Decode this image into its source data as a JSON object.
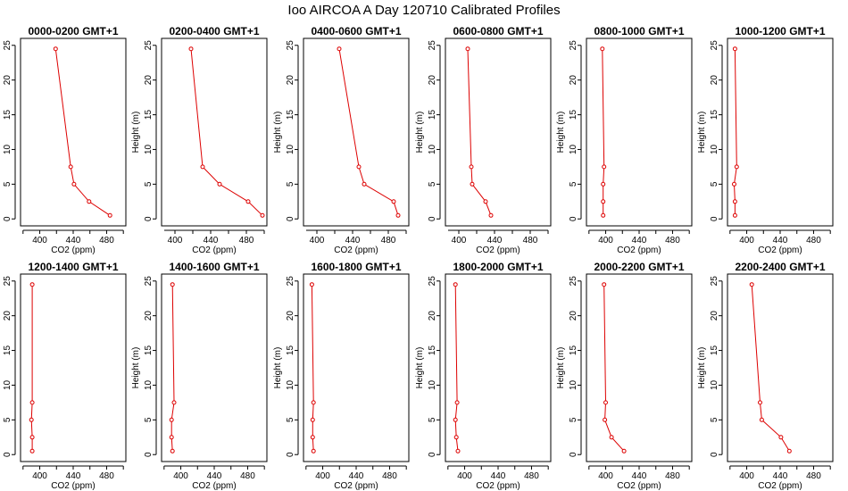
{
  "figure": {
    "title": "Ioo AIRCOA A  Day 120710  Calibrated Profiles"
  },
  "chart_data": [
    {
      "type": "line",
      "title": "0000-0200 GMT+1",
      "xlabel": "CO2 (ppm)",
      "ylabel": "Height (m)",
      "xlim": [
        377,
        503
      ],
      "ylim": [
        -1,
        26
      ],
      "xticks": [
        400,
        440,
        480
      ],
      "yticks": [
        0,
        5,
        10,
        15,
        20,
        25
      ],
      "grid": false,
      "series": [
        {
          "x": [
            484,
            459,
            441,
            437,
            419
          ],
          "y": [
            0.5,
            2.5,
            5,
            7.5,
            24.5
          ]
        }
      ]
    },
    {
      "type": "line",
      "title": "0200-0400 GMT+1",
      "xlabel": "CO2 (ppm)",
      "ylabel": "Height (m)",
      "xlim": [
        385,
        503
      ],
      "ylim": [
        -1,
        26
      ],
      "xticks": [
        400,
        440,
        480
      ],
      "yticks": [
        0,
        5,
        10,
        15,
        20,
        25
      ],
      "grid": false,
      "series": [
        {
          "x": [
            498,
            482,
            450,
            431,
            418
          ],
          "y": [
            0.5,
            2.5,
            5,
            7.5,
            24.5
          ]
        }
      ]
    },
    {
      "type": "line",
      "title": "0400-0600 GMT+1",
      "xlabel": "CO2 (ppm)",
      "ylabel": "Height (m)",
      "xlim": [
        385,
        503
      ],
      "ylim": [
        -1,
        26
      ],
      "xticks": [
        400,
        440,
        480
      ],
      "yticks": [
        0,
        5,
        10,
        15,
        20,
        25
      ],
      "grid": false,
      "series": [
        {
          "x": [
            491,
            486,
            453,
            447,
            425
          ],
          "y": [
            0.5,
            2.5,
            5,
            7.5,
            24.5
          ]
        }
      ]
    },
    {
      "type": "line",
      "title": "0600-0800 GMT+1",
      "xlabel": "CO2 (ppm)",
      "ylabel": "Height (m)",
      "xlim": [
        385,
        503
      ],
      "ylim": [
        -1,
        26
      ],
      "xticks": [
        400,
        440,
        480
      ],
      "yticks": [
        0,
        5,
        10,
        15,
        20,
        25
      ],
      "grid": false,
      "series": [
        {
          "x": [
            436,
            430,
            415,
            414,
            410
          ],
          "y": [
            0.5,
            2.5,
            5,
            7.5,
            24.5
          ]
        }
      ]
    },
    {
      "type": "line",
      "title": "0800-1000 GMT+1",
      "xlabel": "CO2 (ppm)",
      "ylabel": "Height (m)",
      "xlim": [
        377,
        503
      ],
      "ylim": [
        -1,
        26
      ],
      "xticks": [
        400,
        440,
        480
      ],
      "yticks": [
        0,
        5,
        10,
        15,
        20,
        25
      ],
      "grid": false,
      "series": [
        {
          "x": [
            397,
            397,
            397,
            398,
            396
          ],
          "y": [
            0.5,
            2.5,
            5,
            7.5,
            24.5
          ]
        }
      ]
    },
    {
      "type": "line",
      "title": "1000-1200 GMT+1",
      "xlabel": "CO2 (ppm)",
      "ylabel": "Height (m)",
      "xlim": [
        377,
        503
      ],
      "ylim": [
        -1,
        26
      ],
      "xticks": [
        400,
        440,
        480
      ],
      "yticks": [
        0,
        5,
        10,
        15,
        20,
        25
      ],
      "grid": false,
      "series": [
        {
          "x": [
            386,
            386,
            385,
            388,
            386
          ],
          "y": [
            0.5,
            2.5,
            5,
            7.5,
            24.5
          ]
        }
      ]
    },
    {
      "type": "line",
      "title": "1200-1400 GMT+1",
      "xlabel": "CO2 (ppm)",
      "ylabel": "Height (m)",
      "xlim": [
        377,
        503
      ],
      "ylim": [
        -1,
        26
      ],
      "xticks": [
        400,
        440,
        480
      ],
      "yticks": [
        0,
        5,
        10,
        15,
        20,
        25
      ],
      "grid": false,
      "series": [
        {
          "x": [
            391,
            391,
            390,
            391,
            391
          ],
          "y": [
            0.5,
            2.5,
            5,
            7.5,
            24.5
          ]
        }
      ]
    },
    {
      "type": "line",
      "title": "1400-1600 GMT+1",
      "xlabel": "CO2 (ppm)",
      "ylabel": "Height (m)",
      "xlim": [
        377,
        503
      ],
      "ylim": [
        -1,
        26
      ],
      "xticks": [
        400,
        440,
        480
      ],
      "yticks": [
        0,
        5,
        10,
        15,
        20,
        25
      ],
      "grid": false,
      "series": [
        {
          "x": [
            390,
            389,
            389,
            392,
            390
          ],
          "y": [
            0.5,
            2.5,
            5,
            7.5,
            24.5
          ]
        }
      ]
    },
    {
      "type": "line",
      "title": "1600-1800 GMT+1",
      "xlabel": "CO2 (ppm)",
      "ylabel": "Height (m)",
      "xlim": [
        377,
        503
      ],
      "ylim": [
        -1,
        26
      ],
      "xticks": [
        400,
        440,
        480
      ],
      "yticks": [
        0,
        5,
        10,
        15,
        20,
        25
      ],
      "grid": false,
      "series": [
        {
          "x": [
            389,
            388,
            388,
            389,
            387
          ],
          "y": [
            0.5,
            2.5,
            5,
            7.5,
            24.5
          ]
        }
      ]
    },
    {
      "type": "line",
      "title": "1800-2000 GMT+1",
      "xlabel": "CO2 (ppm)",
      "ylabel": "Height (m)",
      "xlim": [
        377,
        503
      ],
      "ylim": [
        -1,
        26
      ],
      "xticks": [
        400,
        440,
        480
      ],
      "yticks": [
        0,
        5,
        10,
        15,
        20,
        25
      ],
      "grid": false,
      "series": [
        {
          "x": [
            392,
            390,
            389,
            391,
            389
          ],
          "y": [
            0.5,
            2.5,
            5,
            7.5,
            24.5
          ]
        }
      ]
    },
    {
      "type": "line",
      "title": "2000-2200 GMT+1",
      "xlabel": "CO2 (ppm)",
      "ylabel": "Height (m)",
      "xlim": [
        377,
        503
      ],
      "ylim": [
        -1,
        26
      ],
      "xticks": [
        400,
        440,
        480
      ],
      "yticks": [
        0,
        5,
        10,
        15,
        20,
        25
      ],
      "grid": false,
      "series": [
        {
          "x": [
            422,
            407,
            399,
            400,
            398
          ],
          "y": [
            0.5,
            2.5,
            5,
            7.5,
            24.5
          ]
        }
      ]
    },
    {
      "type": "line",
      "title": "2200-2400 GMT+1",
      "xlabel": "CO2 (ppm)",
      "ylabel": "Height (m)",
      "xlim": [
        377,
        503
      ],
      "ylim": [
        -1,
        26
      ],
      "xticks": [
        400,
        440,
        480
      ],
      "yticks": [
        0,
        5,
        10,
        15,
        20,
        25
      ],
      "grid": false,
      "series": [
        {
          "x": [
            451,
            441,
            418,
            416,
            406
          ],
          "y": [
            0.5,
            2.5,
            5,
            7.5,
            24.5
          ]
        }
      ]
    }
  ]
}
